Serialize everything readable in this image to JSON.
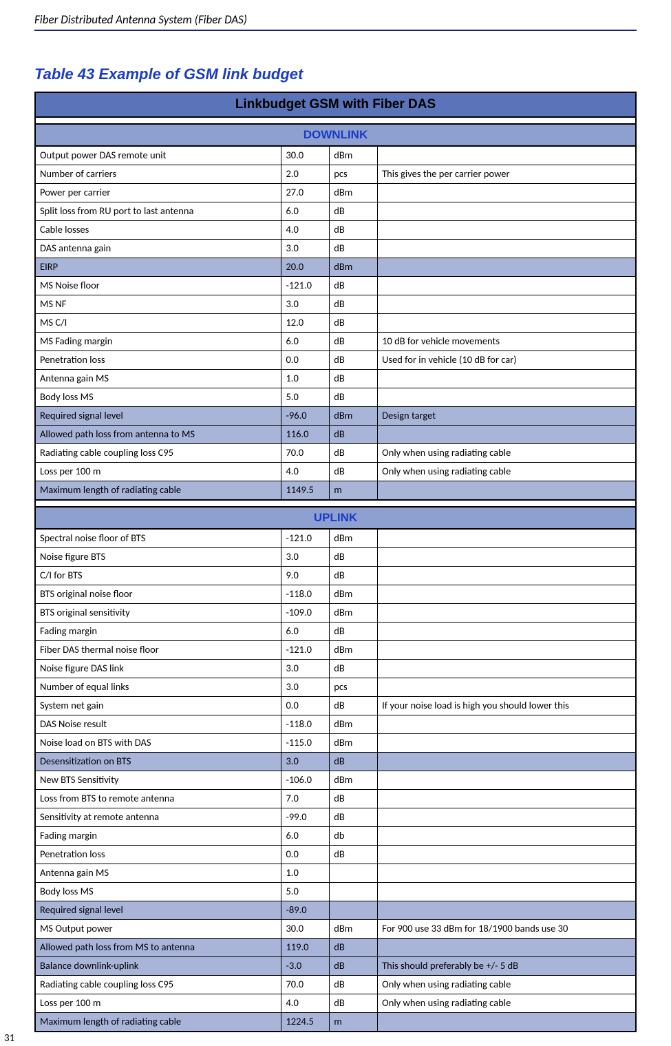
{
  "doc_header": "Fiber Distributed Antenna System (Fiber DAS)",
  "table_label": "Table 43    Example of GSM link budget",
  "page_number": "31",
  "main_title": "Linkbudget GSM with Fiber DAS",
  "downlink_header": "DOWNLINK",
  "uplink_header": "UPLINK",
  "downlink": [
    {
      "p": "Output power DAS remote unit",
      "v": "30.0",
      "u": "dBm",
      "n": "",
      "hl": false
    },
    {
      "p": "Number of carriers",
      "v": "2.0",
      "u": "pcs",
      "n": "This gives the per carrier power",
      "hl": false
    },
    {
      "p": "Power per carrier",
      "v": "27.0",
      "u": "dBm",
      "n": "",
      "hl": false
    },
    {
      "p": "Split loss from RU port to last antenna",
      "v": "6.0",
      "u": "dB",
      "n": "",
      "hl": false
    },
    {
      "p": "Cable losses",
      "v": "4.0",
      "u": "dB",
      "n": "",
      "hl": false
    },
    {
      "p": "DAS antenna gain",
      "v": "3.0",
      "u": "dB",
      "n": "",
      "hl": false
    },
    {
      "p": "EIRP",
      "v": "20.0",
      "u": "dBm",
      "n": "",
      "hl": true
    },
    {
      "p": "MS Noise floor",
      "v": "-121.0",
      "u": "dB",
      "n": "",
      "hl": false
    },
    {
      "p": "MS NF",
      "v": "3.0",
      "u": "dB",
      "n": "",
      "hl": false
    },
    {
      "p": "MS C/I",
      "v": "12.0",
      "u": "dB",
      "n": "",
      "hl": false
    },
    {
      "p": "MS Fading margin",
      "v": "6.0",
      "u": "dB",
      "n": "10 dB for vehicle movements",
      "hl": false
    },
    {
      "p": "Penetration loss",
      "v": "0.0",
      "u": "dB",
      "n": "Used for in vehicle (10 dB for car)",
      "hl": false
    },
    {
      "p": "Antenna gain MS",
      "v": "1.0",
      "u": "dB",
      "n": "",
      "hl": false
    },
    {
      "p": "Body loss MS",
      "v": "5.0",
      "u": "dB",
      "n": "",
      "hl": false
    },
    {
      "p": "Required signal level",
      "v": "-96.0",
      "u": "dBm",
      "n": "Design target",
      "hl": true
    },
    {
      "p": "Allowed path loss from antenna to MS",
      "v": "116.0",
      "u": "dB",
      "n": "",
      "hl": true
    },
    {
      "p": "Radiating cable coupling loss C95",
      "v": "70.0",
      "u": "dB",
      "n": "Only when using radiating cable",
      "hl": false
    },
    {
      "p": "Loss per 100 m",
      "v": "4.0",
      "u": "dB",
      "n": "Only when using radiating cable",
      "hl": false
    },
    {
      "p": "Maximum length of radiating cable",
      "v": "1149.5",
      "u": "m",
      "n": "",
      "hl": true
    }
  ],
  "uplink": [
    {
      "p": "Spectral noise floor of BTS",
      "v": "-121.0",
      "u": "dBm",
      "n": "",
      "hl": false
    },
    {
      "p": "Noise figure BTS",
      "v": "3.0",
      "u": "dB",
      "n": "",
      "hl": false
    },
    {
      "p": "C/I for BTS",
      "v": "9.0",
      "u": "dB",
      "n": "",
      "hl": false
    },
    {
      "p": "BTS original noise floor",
      "v": "-118.0",
      "u": "dBm",
      "n": "",
      "hl": false
    },
    {
      "p": "BTS original sensitivity",
      "v": "-109.0",
      "u": "dBm",
      "n": "",
      "hl": false
    },
    {
      "p": "Fading margin",
      "v": "6.0",
      "u": "dB",
      "n": "",
      "hl": false
    },
    {
      "p": "Fiber DAS thermal noise floor",
      "v": "-121.0",
      "u": "dBm",
      "n": "",
      "hl": false
    },
    {
      "p": "Noise figure DAS link",
      "v": "3.0",
      "u": "dB",
      "n": "",
      "hl": false
    },
    {
      "p": "Number of equal links",
      "v": "3.0",
      "u": "pcs",
      "n": "",
      "hl": false
    },
    {
      "p": "System net gain",
      "v": "0.0",
      "u": "dB",
      "n": "If your noise load is high you should lower this",
      "hl": false
    },
    {
      "p": "DAS Noise result",
      "v": "-118.0",
      "u": "dBm",
      "n": "",
      "hl": false
    },
    {
      "p": "Noise load on BTS with DAS",
      "v": "-115.0",
      "u": "dBm",
      "n": "",
      "hl": false
    },
    {
      "p": "Desensitization on BTS",
      "v": "3.0",
      "u": "dB",
      "n": "",
      "hl": true
    },
    {
      "p": "New BTS Sensitivity",
      "v": "-106.0",
      "u": "dBm",
      "n": "",
      "hl": false
    },
    {
      "p": "Loss from BTS to remote antenna",
      "v": "7.0",
      "u": "dB",
      "n": "",
      "hl": false
    },
    {
      "p": "Sensitivity at remote antenna",
      "v": "-99.0",
      "u": "dB",
      "n": "",
      "hl": false
    },
    {
      "p": "Fading margin",
      "v": "6.0",
      "u": "db",
      "n": "",
      "hl": false
    },
    {
      "p": "Penetration loss",
      "v": "0.0",
      "u": "dB",
      "n": "",
      "hl": false
    },
    {
      "p": "Antenna gain MS",
      "v": "1.0",
      "u": "",
      "n": "",
      "hl": false
    },
    {
      "p": "Body loss MS",
      "v": "5.0",
      "u": "",
      "n": "",
      "hl": false
    },
    {
      "p": "Required signal level",
      "v": "-89.0",
      "u": "",
      "n": "",
      "hl": true
    },
    {
      "p": "MS Output power",
      "v": "30.0",
      "u": "dBm",
      "n": "For 900 use 33 dBm for 18/1900 bands use 30",
      "hl": false
    },
    {
      "p": "Allowed path loss from MS to antenna",
      "v": "119.0",
      "u": "dB",
      "n": "",
      "hl": true
    },
    {
      "p": "Balance downlink-uplink",
      "v": "-3.0",
      "u": "dB",
      "n": "This should preferably be +/- 5 dB",
      "hl": true
    },
    {
      "p": "Radiating cable coupling loss C95",
      "v": "70.0",
      "u": "dB",
      "n": "Only when using radiating cable",
      "hl": false
    },
    {
      "p": "Loss per 100 m",
      "v": "4.0",
      "u": "dB",
      "n": "Only when using radiating cable",
      "hl": false
    },
    {
      "p": "Maximum length of radiating cable",
      "v": "1224.5",
      "u": "m",
      "n": "",
      "hl": true
    }
  ]
}
